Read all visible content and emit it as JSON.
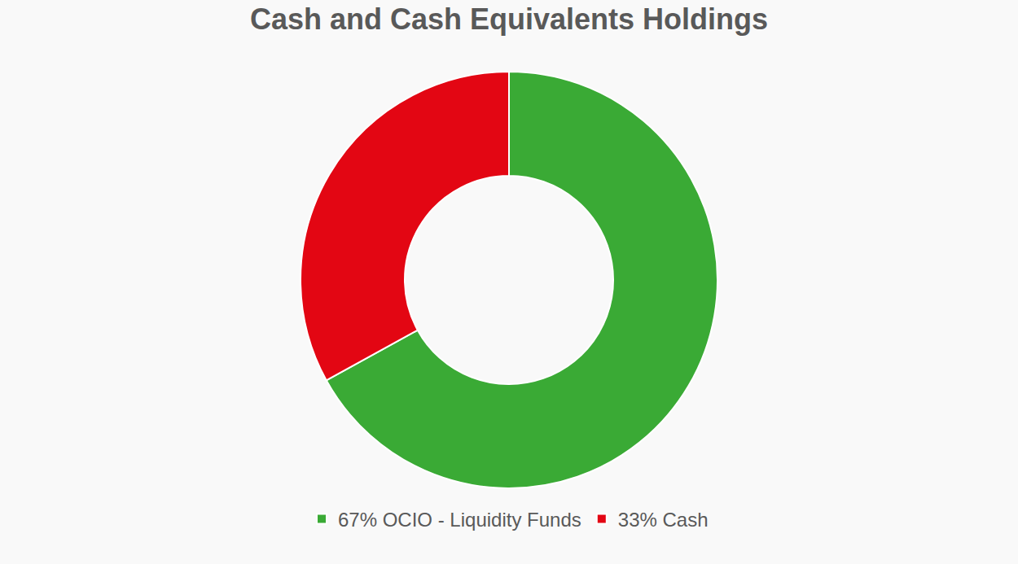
{
  "chart_data": {
    "type": "pie",
    "title": "Cash and Cash Equivalents Holdings",
    "categories": [
      "67% OCIO - Liquidity Funds",
      "33% Cash"
    ],
    "values": [
      67,
      33
    ],
    "colors": [
      "#3aaa35",
      "#e30613"
    ],
    "legend": "bottom"
  }
}
